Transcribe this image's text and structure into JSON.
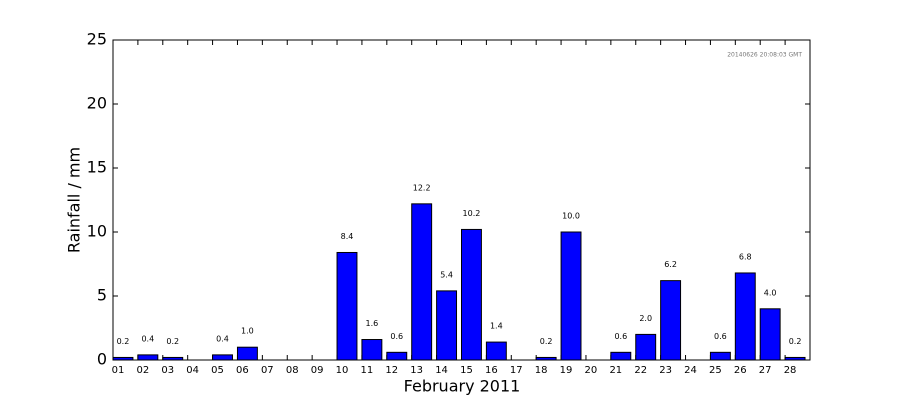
{
  "chart_data": {
    "type": "bar",
    "annotation": "20140626 20:08:03 GMT",
    "x_label": "February 2011",
    "y_label": "Rainfall / mm",
    "categories": [
      "01",
      "02",
      "03",
      "04",
      "05",
      "06",
      "07",
      "08",
      "09",
      "10",
      "11",
      "12",
      "13",
      "14",
      "15",
      "16",
      "17",
      "18",
      "19",
      "20",
      "21",
      "22",
      "23",
      "24",
      "25",
      "26",
      "27",
      "28"
    ],
    "values": [
      0.2,
      0.4,
      0.2,
      0,
      0.4,
      1.0,
      0,
      0,
      0,
      8.4,
      1.6,
      0.6,
      12.2,
      5.4,
      10.2,
      1.4,
      0,
      0.2,
      10.0,
      0,
      0.6,
      2.0,
      6.2,
      0,
      0.6,
      6.8,
      4.0,
      0.2
    ],
    "value_labels": [
      "0.2",
      "0.4",
      "0.2",
      null,
      "0.4",
      "1.0",
      null,
      null,
      null,
      "8.4",
      "1.6",
      "0.6",
      "12.2",
      "5.4",
      "10.2",
      "1.4",
      null,
      "0.2",
      "10.0",
      null,
      "0.6",
      "2.0",
      "6.2",
      null,
      "0.6",
      "6.8",
      "4.0",
      "0.2"
    ],
    "color": "#0000ff",
    "ylim": [
      0,
      25
    ],
    "yticks": [
      0,
      5,
      10,
      15,
      20,
      25
    ],
    "grid": false
  }
}
